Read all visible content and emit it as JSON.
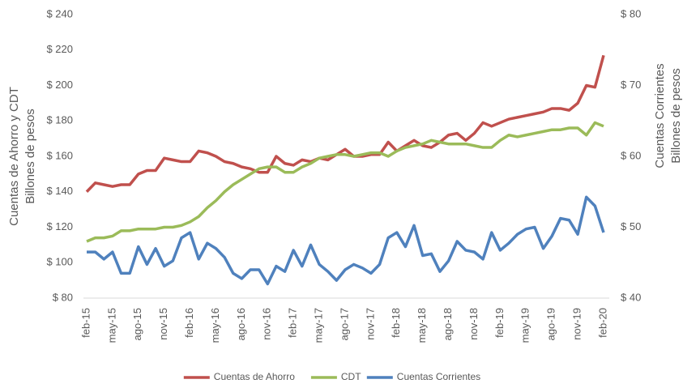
{
  "chart_data": {
    "type": "line",
    "y_label": [
      "Cuentas de Ahorro y CDT",
      "Billones de pesos"
    ],
    "y2_label": [
      "Cuentas Corrientes",
      "Billones de pesos"
    ],
    "categories": [
      "feb-15",
      null,
      null,
      "may-15",
      null,
      null,
      "ago-15",
      null,
      null,
      "nov-15",
      null,
      null,
      "feb-16",
      null,
      null,
      "may-16",
      null,
      null,
      "ago-16",
      null,
      null,
      "nov-16",
      null,
      null,
      "feb-17",
      null,
      null,
      "may-17",
      null,
      null,
      "ago-17",
      null,
      null,
      "nov-17",
      null,
      null,
      "feb-18",
      null,
      null,
      "may-18",
      null,
      null,
      "ago-18",
      null,
      null,
      "nov-18",
      null,
      null,
      "feb-19",
      null,
      null,
      "may-19",
      null,
      null,
      "ago-19",
      null,
      null,
      "nov-19",
      null,
      null,
      "feb-20"
    ],
    "ylim": [
      80,
      240
    ],
    "yticks": [
      {
        "value": 80,
        "label": "$ 80"
      },
      {
        "value": 100,
        "label": "$ 100"
      },
      {
        "value": 120,
        "label": "$ 120"
      },
      {
        "value": 140,
        "label": "$ 140"
      },
      {
        "value": 160,
        "label": "$ 160"
      },
      {
        "value": 180,
        "label": "$ 180"
      },
      {
        "value": 200,
        "label": "$ 200"
      },
      {
        "value": 220,
        "label": "$ 220"
      },
      {
        "value": 240,
        "label": "$ 240"
      }
    ],
    "y2lim": [
      40,
      80
    ],
    "y2ticks": [
      {
        "value": 40,
        "label": "$ 40"
      },
      {
        "value": 50,
        "label": "$ 50"
      },
      {
        "value": 60,
        "label": "$ 60"
      },
      {
        "value": 70,
        "label": "$ 70"
      },
      {
        "value": 80,
        "label": "$ 80"
      }
    ],
    "legend": "bottom",
    "series": [
      {
        "name": "Cuentas de Ahorro",
        "color": "#c0504d",
        "values": [
          140,
          145,
          144,
          143,
          144,
          144,
          150,
          152,
          152,
          159,
          158,
          157,
          157,
          163,
          162,
          160,
          157,
          156,
          154,
          153,
          151,
          151,
          160,
          156,
          155,
          158,
          157,
          159,
          158,
          161,
          164,
          160,
          160,
          161,
          161,
          168,
          163,
          166,
          169,
          166,
          165,
          168,
          172,
          173,
          169,
          173,
          179,
          177,
          179,
          181,
          182,
          183,
          184,
          185,
          187,
          187,
          186,
          190,
          200,
          199,
          217
        ]
      },
      {
        "name": "CDT",
        "color": "#9bbb59",
        "values": [
          112,
          114,
          114,
          115,
          118,
          118,
          119,
          119,
          119,
          120,
          120,
          121,
          123,
          126,
          131,
          135,
          140,
          144,
          147,
          150,
          153,
          154,
          154,
          151,
          151,
          154,
          156,
          159,
          160,
          161,
          161,
          160,
          161,
          162,
          162,
          160,
          163,
          165,
          166,
          167,
          169,
          168,
          167,
          167,
          167,
          166,
          165,
          165,
          169,
          172,
          171,
          172,
          173,
          174,
          175,
          175,
          176,
          176,
          172,
          179,
          177
        ]
      },
      {
        "name": "Cuentas Corrientes",
        "color": "#4f81bd",
        "axis": "y2",
        "values": [
          46.5,
          46.5,
          45.5,
          46.5,
          43.5,
          43.5,
          47.25,
          44.75,
          47,
          44.5,
          45.25,
          48.5,
          49.25,
          45.5,
          47.75,
          47,
          45.75,
          43.5,
          42.75,
          44,
          44,
          42,
          44.5,
          43.75,
          46.75,
          44.5,
          47.5,
          44.75,
          43.75,
          42.5,
          44,
          44.75,
          44.25,
          43.5,
          44.75,
          48.5,
          49.25,
          47.25,
          50.25,
          46,
          46.25,
          43.75,
          45.25,
          48,
          46.75,
          46.5,
          45.5,
          49.25,
          46.75,
          47.75,
          49,
          49.75,
          50,
          47,
          48.75,
          51.25,
          51,
          49,
          54.25,
          53,
          49.25
        ]
      }
    ]
  }
}
